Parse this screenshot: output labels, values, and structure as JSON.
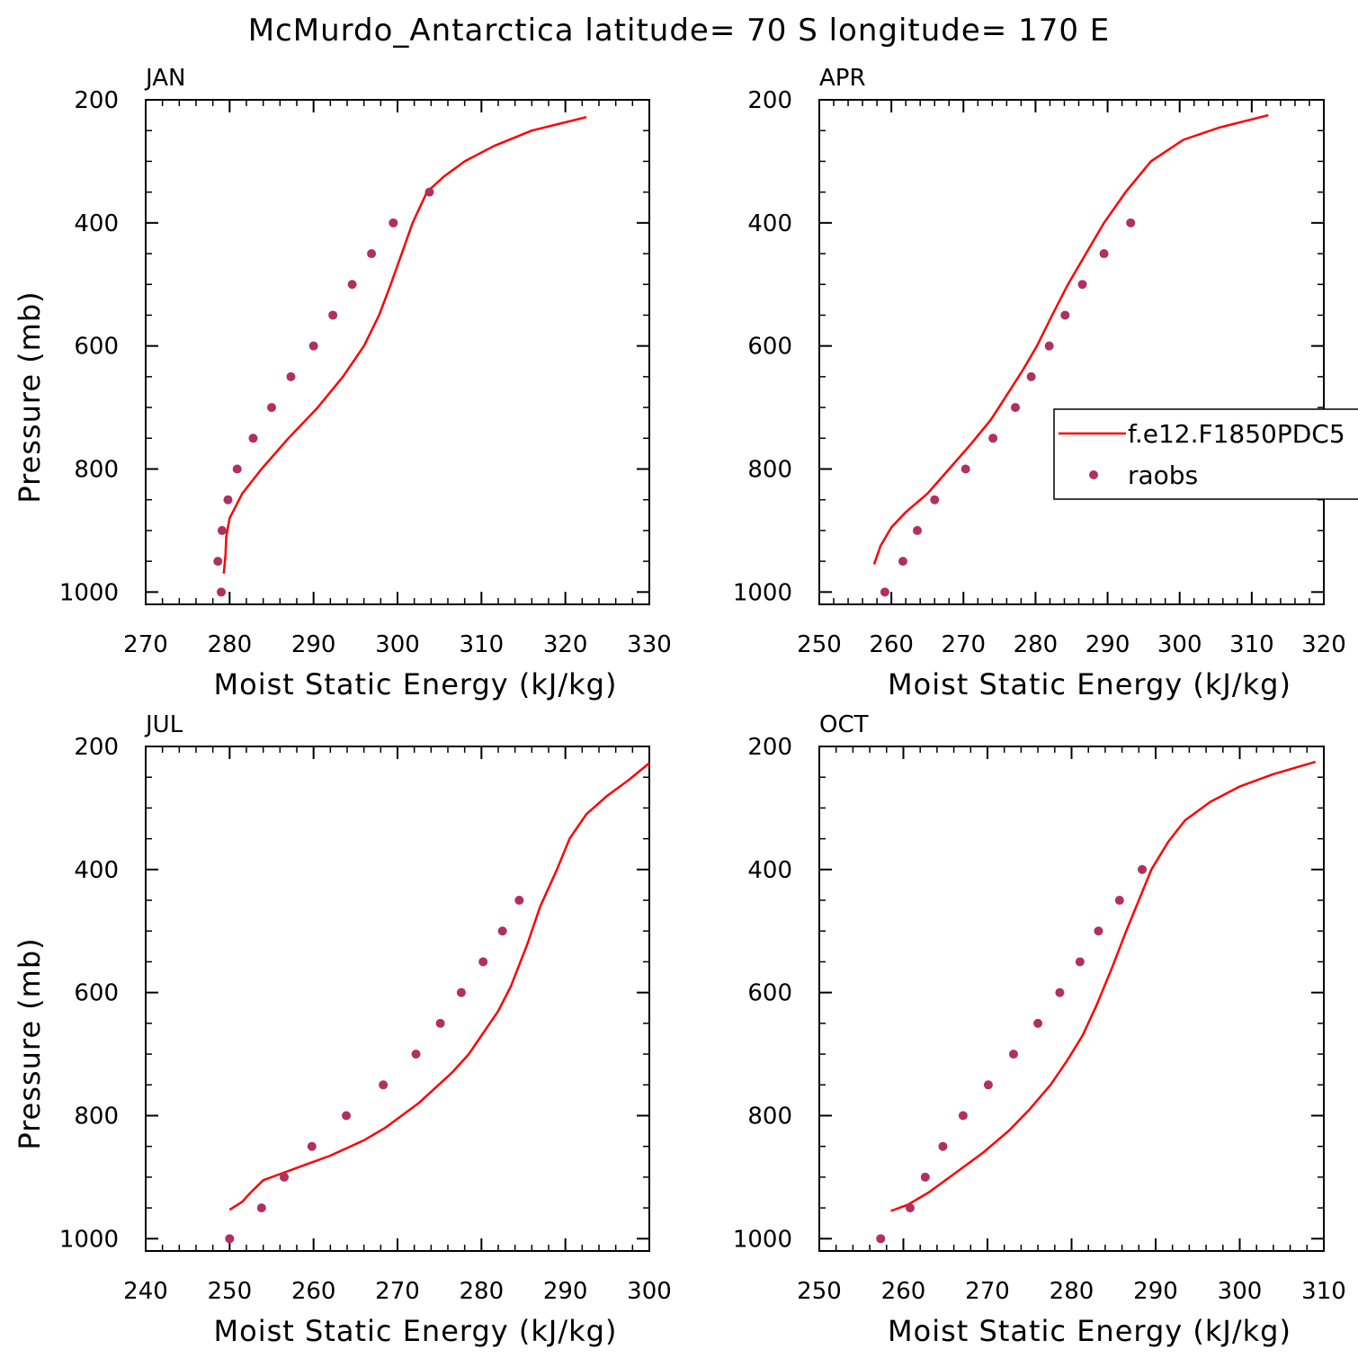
{
  "title": "McMurdo_Antarctica  latitude= 70 S longitude= 170 E",
  "colors": {
    "model": "#ff0000",
    "obs": "#b03060"
  },
  "legend": {
    "model_label": "f.e12.F1850PDC5",
    "obs_label": "raobs"
  },
  "chart_data": [
    {
      "type": "line",
      "title": "JAN",
      "xlabel": "Moist Static Energy (kJ/kg)",
      "ylabel": "Pressure (mb)",
      "xlim": [
        270,
        330
      ],
      "ylim": [
        1020,
        200
      ],
      "xticks": [
        270,
        280,
        290,
        300,
        310,
        320,
        330
      ],
      "yticks": [
        200,
        400,
        600,
        800,
        1000
      ],
      "series": [
        {
          "name": "f.e12.F1850PDC5",
          "kind": "line",
          "x": [
            279.3,
            279.5,
            279.6,
            280.0,
            281.5,
            283.8,
            287.0,
            290.5,
            293.5,
            296.0,
            297.8,
            299.2,
            300.5,
            301.8,
            303.5,
            305.5,
            308.0,
            311.5,
            316.0,
            322.5
          ],
          "y": [
            970,
            940,
            910,
            880,
            840,
            800,
            750,
            700,
            650,
            600,
            550,
            500,
            450,
            400,
            350,
            325,
            300,
            275,
            250,
            228
          ]
        },
        {
          "name": "raobs",
          "kind": "markers",
          "x": [
            279.0,
            278.6,
            279.1,
            279.8,
            280.9,
            282.8,
            285.0,
            287.3,
            290.0,
            292.3,
            294.6,
            296.9,
            299.5,
            303.8
          ],
          "y": [
            1000,
            950,
            900,
            850,
            800,
            750,
            700,
            650,
            600,
            550,
            500,
            450,
            400,
            350
          ]
        }
      ]
    },
    {
      "type": "line",
      "title": "APR",
      "xlabel": "Moist Static Energy (kJ/kg)",
      "ylabel": "",
      "xlim": [
        250,
        320
      ],
      "ylim": [
        1020,
        200
      ],
      "xticks": [
        250,
        260,
        270,
        280,
        290,
        300,
        310,
        320
      ],
      "yticks": [
        200,
        400,
        600,
        800,
        1000
      ],
      "legend_position": "right",
      "series": [
        {
          "name": "f.e12.F1850PDC5",
          "kind": "line",
          "x": [
            257.6,
            258.5,
            260.0,
            262.0,
            265.0,
            268.0,
            271.0,
            273.8,
            276.0,
            278.2,
            280.2,
            282.3,
            284.5,
            287.0,
            289.5,
            292.5,
            296.0,
            300.5,
            305.5,
            312.3
          ],
          "y": [
            955,
            925,
            895,
            870,
            840,
            800,
            760,
            720,
            680,
            640,
            600,
            550,
            500,
            450,
            400,
            350,
            300,
            265,
            245,
            225
          ]
        },
        {
          "name": "raobs",
          "kind": "markers",
          "x": [
            259.1,
            261.6,
            263.6,
            266.0,
            270.3,
            274.1,
            277.2,
            279.4,
            281.9,
            284.1,
            286.5,
            289.5,
            293.2
          ],
          "y": [
            1000,
            950,
            900,
            850,
            800,
            750,
            700,
            650,
            600,
            550,
            500,
            450,
            400
          ]
        }
      ]
    },
    {
      "type": "line",
      "title": "JUL",
      "xlabel": "Moist Static Energy (kJ/kg)",
      "ylabel": "Pressure (mb)",
      "xlim": [
        240,
        300
      ],
      "ylim": [
        1020,
        200
      ],
      "xticks": [
        240,
        250,
        260,
        270,
        280,
        290,
        300
      ],
      "yticks": [
        200,
        400,
        600,
        800,
        1000
      ],
      "series": [
        {
          "name": "f.e12.F1850PDC5",
          "kind": "line",
          "x": [
            250.0,
            251.5,
            252.5,
            254.0,
            256.0,
            259.0,
            262.0,
            266.0,
            268.5,
            270.5,
            272.5,
            274.5,
            276.5,
            278.5,
            280.0,
            282.0,
            283.5,
            285.5,
            287.0,
            289.0,
            290.5,
            292.5,
            295.0,
            297.5,
            300.0
          ],
          "y": [
            953,
            940,
            925,
            905,
            895,
            880,
            865,
            840,
            820,
            800,
            780,
            755,
            730,
            700,
            670,
            630,
            590,
            520,
            460,
            400,
            350,
            310,
            280,
            255,
            227
          ]
        },
        {
          "name": "raobs",
          "kind": "markers",
          "x": [
            250.0,
            253.8,
            256.5,
            259.8,
            263.9,
            268.3,
            272.2,
            275.1,
            277.6,
            280.2,
            282.5,
            284.5
          ],
          "y": [
            1000,
            950,
            900,
            850,
            800,
            750,
            700,
            650,
            600,
            550,
            500,
            450
          ]
        }
      ]
    },
    {
      "type": "line",
      "title": "OCT",
      "xlabel": "Moist Static Energy (kJ/kg)",
      "ylabel": "",
      "xlim": [
        250,
        310
      ],
      "ylim": [
        1020,
        200
      ],
      "xticks": [
        250,
        260,
        270,
        280,
        290,
        300,
        310
      ],
      "yticks": [
        200,
        400,
        600,
        800,
        1000
      ],
      "series": [
        {
          "name": "f.e12.F1850PDC5",
          "kind": "line",
          "x": [
            258.5,
            260.5,
            263.0,
            266.5,
            269.5,
            272.5,
            275.0,
            277.5,
            279.5,
            281.3,
            283.0,
            284.8,
            286.5,
            288.0,
            289.5,
            291.5,
            293.5,
            296.5,
            300.0,
            304.0,
            309.0
          ],
          "y": [
            955,
            945,
            925,
            890,
            860,
            825,
            790,
            750,
            710,
            670,
            620,
            560,
            500,
            450,
            400,
            355,
            320,
            290,
            265,
            245,
            225
          ]
        },
        {
          "name": "raobs",
          "kind": "markers",
          "x": [
            257.3,
            260.8,
            262.6,
            264.7,
            267.1,
            270.1,
            273.1,
            276.0,
            278.6,
            281.0,
            283.2,
            285.7,
            288.4
          ],
          "y": [
            1000,
            950,
            900,
            850,
            800,
            750,
            700,
            650,
            600,
            550,
            500,
            450,
            400
          ]
        }
      ]
    }
  ]
}
